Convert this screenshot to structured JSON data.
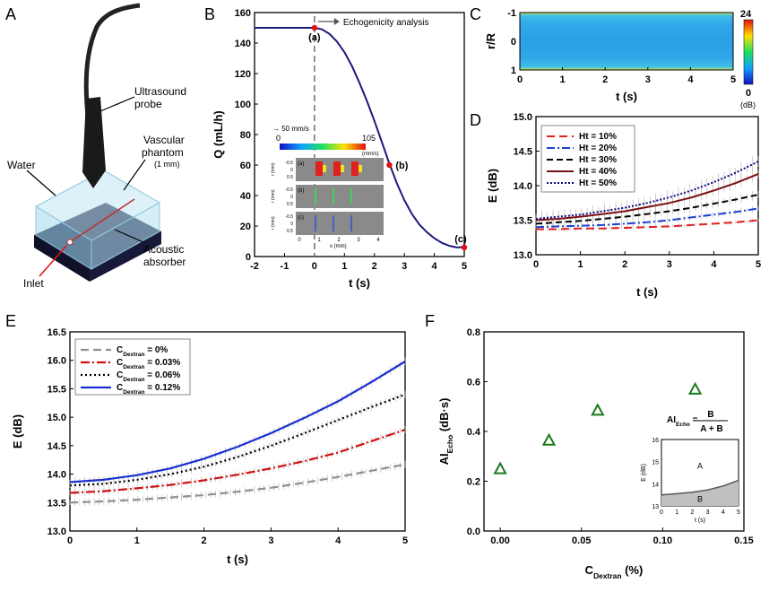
{
  "panels": {
    "A": "A",
    "B": "B",
    "C": "C",
    "D": "D",
    "E": "E",
    "F": "F"
  },
  "diagram_A": {
    "labels": {
      "probe": "Ultrasound probe",
      "probe_l1": "Ultrasound",
      "probe_l2": "probe",
      "phantom_l1": "Vascular",
      "phantom_l2": "phantom",
      "phantom_l3": "(1 mm)",
      "water": "Water",
      "inlet": "Inlet",
      "absorber_l1": "Acoustic",
      "absorber_l2": "absorber"
    }
  },
  "inset_B": {
    "velocity_label": "→ 50 mm/s",
    "cb_min": "0",
    "cb_max": "105",
    "cb_unit": "(mm/s)",
    "sub": [
      "(a)",
      "(b)",
      "(c)"
    ],
    "r_label": "r (mm)",
    "r_ticks": [
      "-0.5",
      "0",
      "0.5"
    ],
    "x_ticks": [
      "0",
      "1",
      "2",
      "3",
      "4"
    ],
    "x_label": "x (mm)"
  },
  "chart_data": [
    {
      "id": "B",
      "type": "line",
      "xlabel": "t (s)",
      "ylabel": "Q (mL/h)",
      "xlim": [
        -2,
        5
      ],
      "ylim": [
        0,
        160
      ],
      "xticks": [
        -2,
        -1,
        0,
        1,
        2,
        3,
        4,
        5
      ],
      "yticks": [
        0,
        20,
        40,
        60,
        80,
        100,
        120,
        140,
        160
      ],
      "series": [
        {
          "values_x": [
            -2,
            -1.5,
            -1,
            -0.5,
            0,
            0.25,
            0.5,
            0.75,
            1,
            1.25,
            1.5,
            1.75,
            2,
            2.25,
            2.5,
            2.75,
            3,
            3.25,
            3.5,
            3.75,
            4,
            4.25,
            4.5,
            4.75,
            5
          ],
          "values_y": [
            150,
            150,
            150,
            150,
            150,
            149,
            146,
            141,
            134,
            125,
            114,
            102,
            89,
            75,
            61,
            48,
            37,
            28,
            21,
            16,
            12,
            9,
            7,
            6,
            6
          ],
          "color": "#1a1a7a"
        }
      ],
      "markers": [
        {
          "label": "(a)",
          "x": 0,
          "y": 150
        },
        {
          "label": "(b)",
          "x": 2.5,
          "y": 60
        },
        {
          "label": "(c)",
          "x": 5,
          "y": 6
        }
      ],
      "annotation": "Echogenicity analysis"
    },
    {
      "id": "C",
      "type": "heatmap",
      "xlabel": "t (s)",
      "ylabel": "r/R",
      "xlim": [
        0,
        5
      ],
      "ylim": [
        -1,
        1
      ],
      "xticks": [
        0,
        1,
        2,
        3,
        4,
        5
      ],
      "yticks": [
        -1,
        0,
        1
      ],
      "colorbar": {
        "min": "0",
        "max": "24",
        "unit": "(dB)"
      }
    },
    {
      "id": "D",
      "type": "line",
      "xlabel": "t (s)",
      "ylabel": "E (dB)",
      "xlim": [
        0,
        5
      ],
      "ylim": [
        13.0,
        15.0
      ],
      "xticks": [
        0,
        1,
        2,
        3,
        4,
        5
      ],
      "yticks": [
        "13.0",
        "13.5",
        "14.0",
        "14.5",
        "15.0"
      ],
      "legend_position": "top-left",
      "x": [
        0,
        0.5,
        1,
        1.5,
        2,
        2.5,
        3,
        3.5,
        4,
        4.5,
        5
      ],
      "series": [
        {
          "name": "Ht = 10%",
          "color": "#e02020",
          "dash": "9,5",
          "values": [
            13.37,
            13.37,
            13.38,
            13.38,
            13.39,
            13.4,
            13.41,
            13.43,
            13.45,
            13.47,
            13.5
          ]
        },
        {
          "name": "Ht = 20%",
          "color": "#1f3fd0",
          "dash": "9,3,2,3",
          "values": [
            13.4,
            13.41,
            13.42,
            13.43,
            13.45,
            13.47,
            13.5,
            13.54,
            13.58,
            13.62,
            13.67
          ]
        },
        {
          "name": "Ht = 30%",
          "color": "#000000",
          "dash": "7,4",
          "values": [
            13.45,
            13.47,
            13.49,
            13.52,
            13.55,
            13.59,
            13.63,
            13.68,
            13.74,
            13.8,
            13.87
          ]
        },
        {
          "name": "Ht = 40%",
          "color": "#7a1010",
          "dash": "",
          "values": [
            13.5,
            13.52,
            13.55,
            13.59,
            13.63,
            13.69,
            13.75,
            13.83,
            13.93,
            14.04,
            14.17
          ]
        },
        {
          "name": "Ht = 50%",
          "color": "#0a0a80",
          "dash": "2,2",
          "values": [
            13.52,
            13.55,
            13.58,
            13.63,
            13.68,
            13.75,
            13.83,
            13.93,
            14.05,
            14.19,
            14.35
          ]
        }
      ]
    },
    {
      "id": "E",
      "type": "line",
      "xlabel": "t (s)",
      "ylabel": "E (dB)",
      "xlim": [
        0,
        5
      ],
      "ylim": [
        13.0,
        16.5
      ],
      "xticks": [
        0,
        1,
        2,
        3,
        4,
        5
      ],
      "yticks": [
        "13.0",
        "13.5",
        "14.0",
        "14.5",
        "15.0",
        "15.5",
        "16.0",
        "16.5"
      ],
      "legend_position": "top-left",
      "x": [
        0,
        0.5,
        1,
        1.5,
        2,
        2.5,
        3,
        3.5,
        4,
        4.5,
        5
      ],
      "series": [
        {
          "name_main": "C",
          "name_sub": "Dextran",
          "name_tail": " = 0%",
          "color": "#909090",
          "dash": "9,5",
          "values": [
            13.5,
            13.52,
            13.55,
            13.59,
            13.63,
            13.69,
            13.76,
            13.85,
            13.95,
            14.06,
            14.17
          ]
        },
        {
          "name_main": "C",
          "name_sub": "Dextran",
          "name_tail": " = 0.03%",
          "color": "#d01010",
          "dash": "10,3,2,3",
          "values": [
            13.67,
            13.7,
            13.75,
            13.81,
            13.89,
            13.99,
            14.1,
            14.23,
            14.38,
            14.58,
            14.78
          ]
        },
        {
          "name_main": "C",
          "name_sub": "Dextran",
          "name_tail": " = 0.06%",
          "color": "#000000",
          "dash": "2,3",
          "values": [
            13.8,
            13.83,
            13.9,
            14.0,
            14.13,
            14.3,
            14.5,
            14.72,
            14.95,
            15.18,
            15.4
          ]
        },
        {
          "name_main": "C",
          "name_sub": "Dextran",
          "name_tail": " = 0.12%",
          "color": "#1a2fd0",
          "dash": "",
          "values": [
            13.86,
            13.9,
            13.98,
            14.1,
            14.27,
            14.48,
            14.72,
            14.99,
            15.28,
            15.62,
            15.98
          ]
        }
      ]
    },
    {
      "id": "F",
      "type": "scatter",
      "xlabel_main": "C",
      "xlabel_sub": "Dextran",
      "xlabel_tail": " (%)",
      "ylabel_main": "AI",
      "ylabel_sub": "Echo",
      "ylabel_tail": " (dB·s)",
      "xlim": [
        -0.01,
        0.15
      ],
      "ylim": [
        0,
        0.8
      ],
      "xticks": [
        "0.00",
        "0.05",
        "0.10",
        "0.15"
      ],
      "yticks": [
        "0.0",
        "0.2",
        "0.4",
        "0.6",
        "0.8"
      ],
      "points": [
        {
          "x": 0.0,
          "y": 0.25
        },
        {
          "x": 0.03,
          "y": 0.365
        },
        {
          "x": 0.06,
          "y": 0.485
        },
        {
          "x": 0.12,
          "y": 0.57
        }
      ],
      "marker_color": "#1a7a1a",
      "formula": {
        "lhs_main": "AI",
        "lhs_sub": "Echo",
        "eq": " = ",
        "num": "B",
        "den": "A + B"
      },
      "inset": {
        "xlabel": "t (s)",
        "ylabel": "E (dB)",
        "xlim": [
          0,
          5
        ],
        "ylim": [
          13,
          16
        ],
        "xticks": [
          0,
          1,
          2,
          3,
          4,
          5
        ],
        "yticks": [
          13,
          14,
          15,
          16
        ],
        "x": [
          0,
          1,
          2,
          3,
          4,
          5
        ],
        "values": [
          13.5,
          13.55,
          13.62,
          13.72,
          13.9,
          14.15
        ],
        "region_above": "A",
        "region_below": "B"
      }
    }
  ]
}
